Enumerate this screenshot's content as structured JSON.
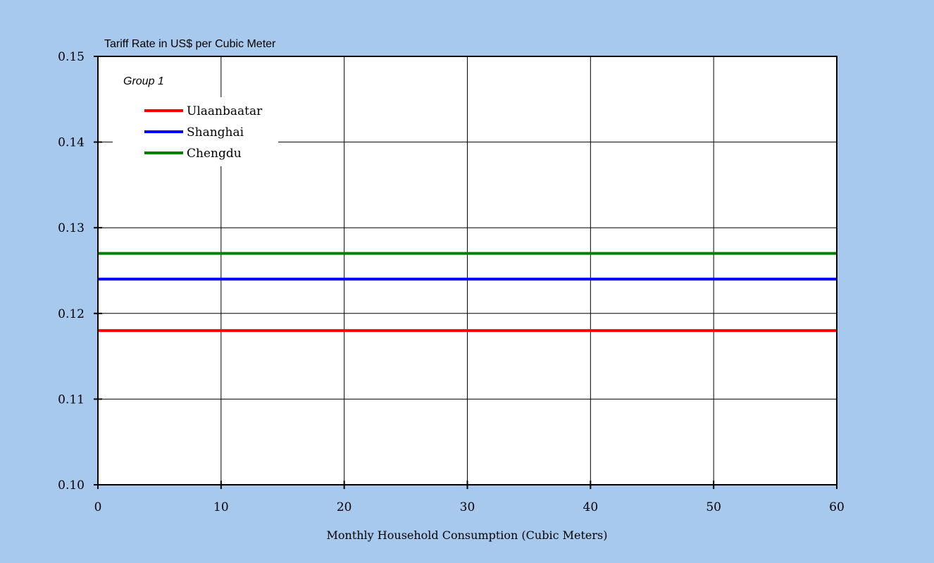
{
  "colors": {
    "background": "#a8c9ee",
    "plot_area": "#ffffff",
    "grid": "#000000"
  },
  "chart_data": {
    "type": "line",
    "title": "",
    "ylabel": "Tariff Rate in US$ per Cubic Meter",
    "xlabel": "Monthly Household Consumption (Cubic Meters)",
    "annotation": "Group 1",
    "xlim": [
      0,
      60
    ],
    "ylim": [
      0.1,
      0.15
    ],
    "x_ticks": [
      0,
      10,
      20,
      30,
      40,
      50,
      60
    ],
    "x_tick_labels": [
      "0",
      "10",
      "20",
      "30",
      "40",
      "50",
      "60"
    ],
    "y_ticks": [
      0.1,
      0.11,
      0.12,
      0.13,
      0.14,
      0.15
    ],
    "y_tick_labels": [
      "0.10",
      "0.11",
      "0.12",
      "0.13",
      "0.14",
      "0.15"
    ],
    "grid": true,
    "legend_position": "top-left",
    "series": [
      {
        "name": "Ulaanbaatar",
        "color": "#ff0000",
        "x": [
          0,
          60
        ],
        "y": [
          0.118,
          0.118
        ]
      },
      {
        "name": "Shanghai",
        "color": "#0000ff",
        "x": [
          0,
          60
        ],
        "y": [
          0.124,
          0.124
        ]
      },
      {
        "name": "Chengdu",
        "color": "#008000",
        "x": [
          0,
          60
        ],
        "y": [
          0.127,
          0.127
        ]
      }
    ]
  }
}
